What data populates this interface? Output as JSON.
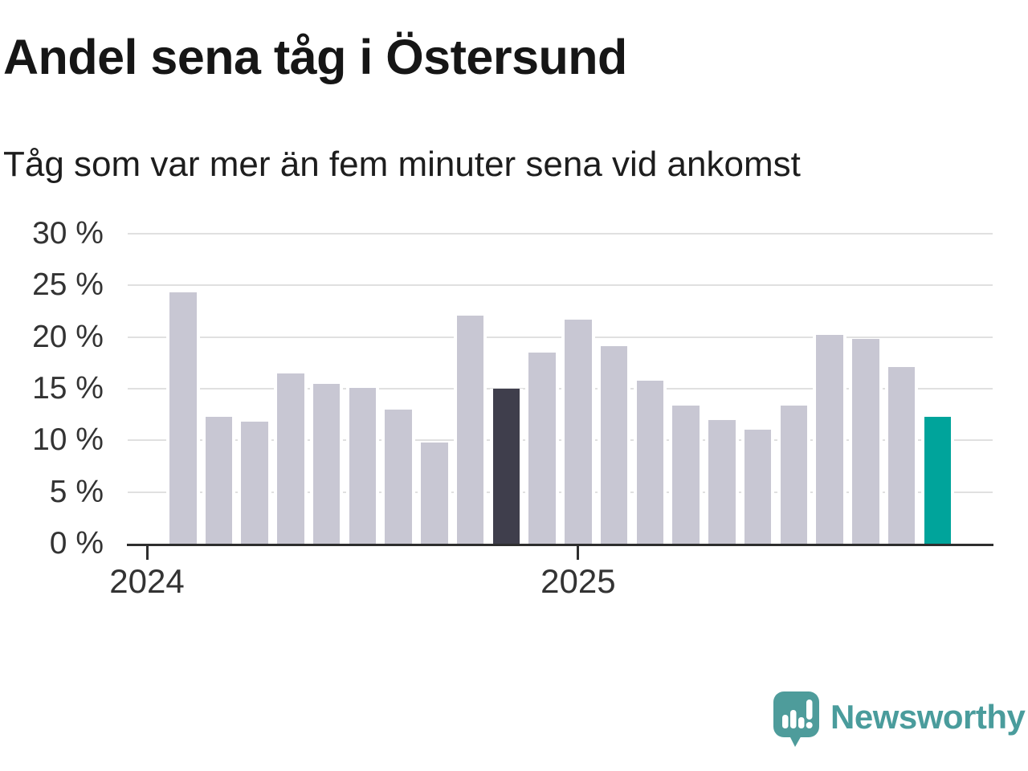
{
  "title": "Andel sena tåg i Östersund",
  "subtitle": "Tåg som var mer än fem minuter sena vid ankomst",
  "chart_data": {
    "type": "bar",
    "title": "Andel sena tåg i Östersund",
    "subtitle": "Tåg som var mer än fem minuter sena vid ankomst",
    "unit": "%",
    "ylim": [
      0,
      30
    ],
    "grid": true,
    "legend": false,
    "yticks": [
      {
        "label": "30 %",
        "value": 30
      },
      {
        "label": "25 %",
        "value": 25
      },
      {
        "label": "20 %",
        "value": 20
      },
      {
        "label": "15 %",
        "value": 15
      },
      {
        "label": "10 %",
        "value": 10
      },
      {
        "label": "5 %",
        "value": 5
      },
      {
        "label": "0 %",
        "value": 0
      }
    ],
    "xticks": [
      {
        "label": "2024",
        "slot": 0
      },
      {
        "label": "2025",
        "slot": 12
      }
    ],
    "values": [
      24.3,
      12.3,
      11.8,
      16.5,
      15.5,
      15.1,
      13.0,
      9.8,
      22.1,
      15.0,
      18.5,
      21.7,
      19.1,
      15.8,
      13.4,
      12.0,
      11.0,
      13.4,
      20.2,
      19.8,
      17.1,
      12.3
    ],
    "highlights": {
      "dark_index": 9,
      "teal_index": 21
    },
    "colors": {
      "bar_default": "#c8c7d3",
      "bar_dark": "#3f3e4c",
      "bar_teal": "#00a49b",
      "gridline": "#e0e0e0",
      "axis": "#2e2e2e",
      "tick_text": "#333333",
      "title_text": "#161616"
    }
  },
  "logo": {
    "text": "Newsworthy",
    "color": "#4a9c9c",
    "icon": "newsworthy-speech-bubble-bar-chart-icon"
  }
}
